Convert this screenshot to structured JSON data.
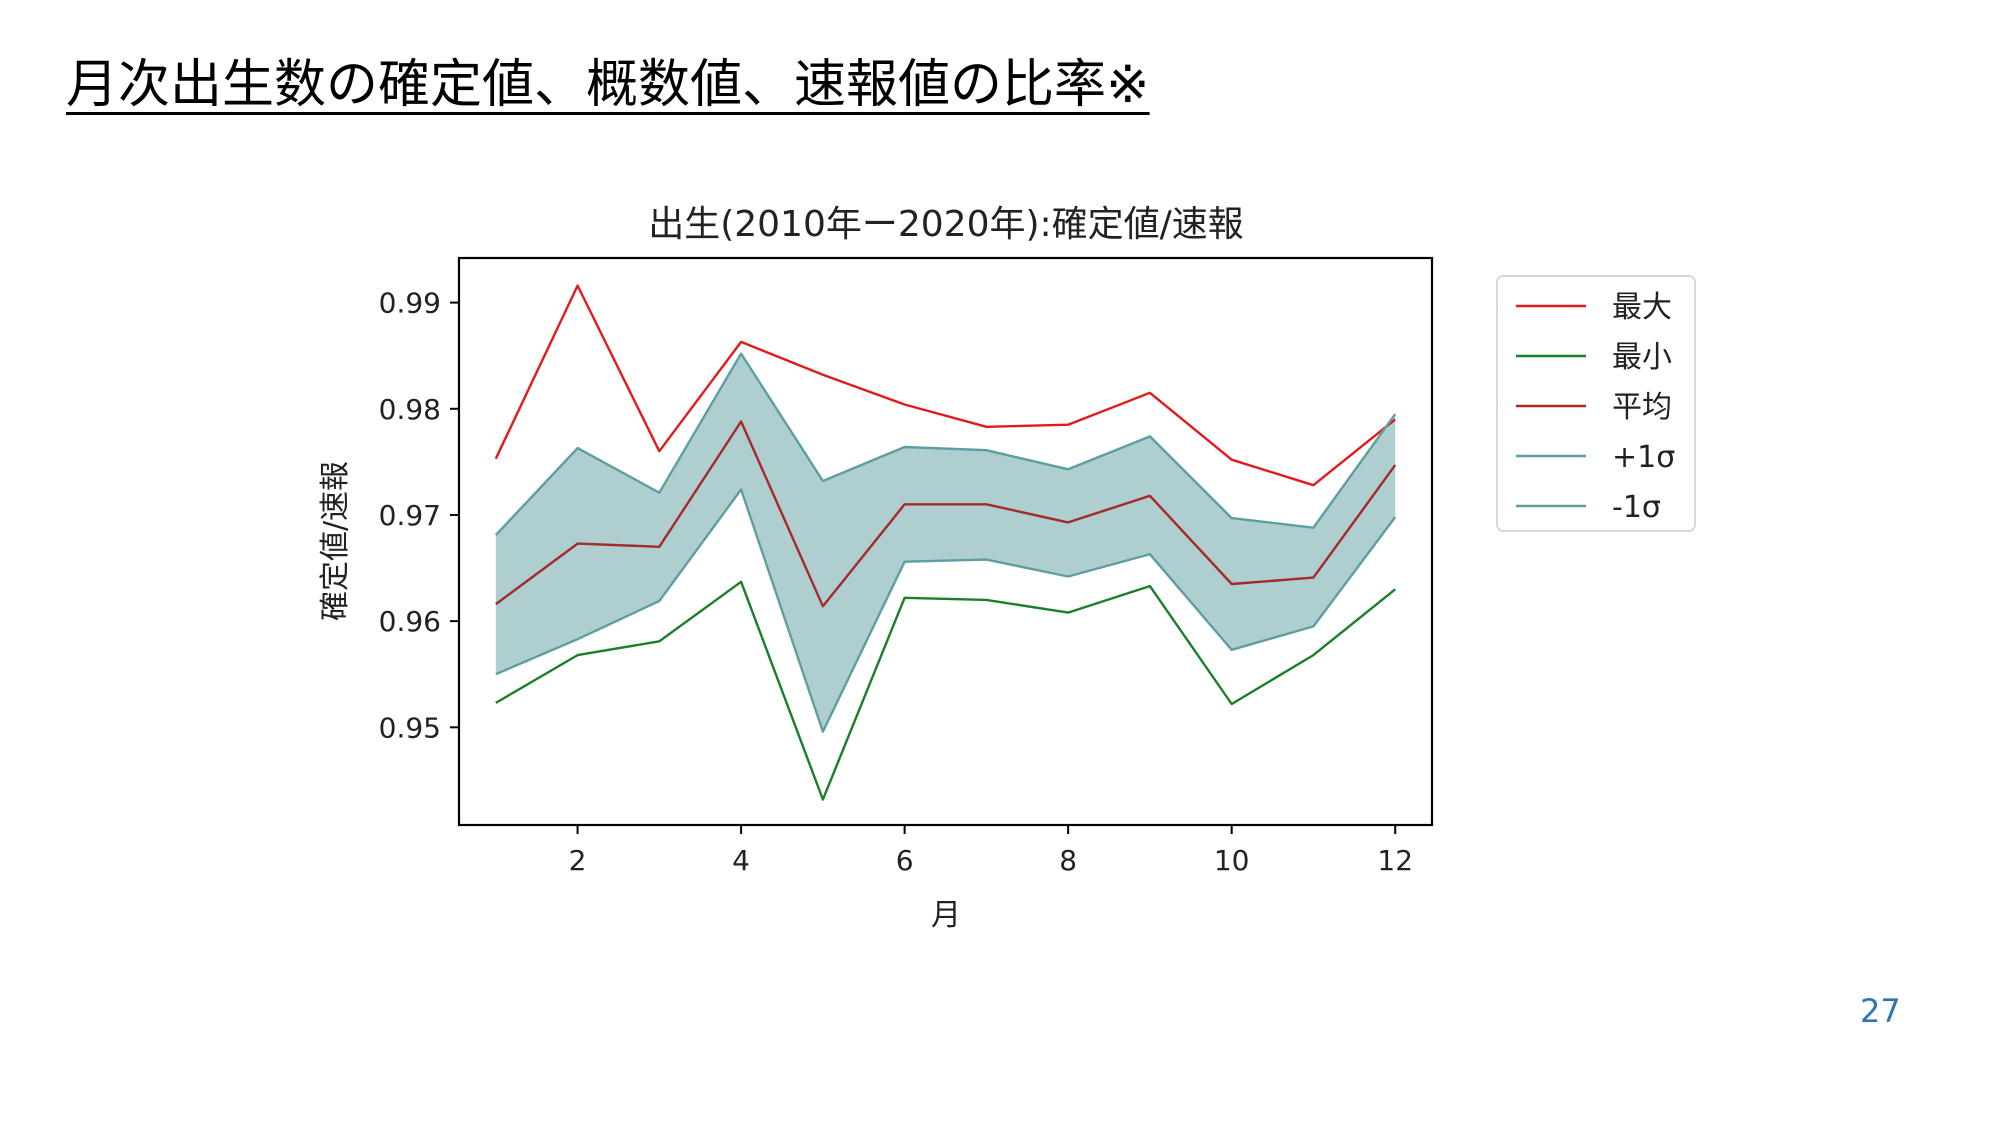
{
  "slide": {
    "title": "月次出生数の確定値、概数値、速報値の比率※",
    "page_number": "27"
  },
  "chart_data": {
    "type": "line",
    "title": "出生(2010年ー2020年):確定値/速報",
    "xlabel": "月",
    "ylabel": "確定値/速報",
    "x": [
      1,
      2,
      3,
      4,
      5,
      6,
      7,
      8,
      9,
      10,
      11,
      12
    ],
    "xlim": [
      0.55,
      12.45
    ],
    "ylim": [
      0.9408,
      0.9942
    ],
    "xticks": [
      2,
      4,
      6,
      8,
      10,
      12
    ],
    "yticks": [
      0.95,
      0.96,
      0.97,
      0.98,
      0.99
    ],
    "ytick_labels": [
      "0.95",
      "0.96",
      "0.97",
      "0.98",
      "0.99"
    ],
    "grid": false,
    "legend_position": "outside-right-top",
    "band": {
      "between": [
        "+1σ",
        "-1σ"
      ],
      "color": "#5F9EA0",
      "opacity": 0.5
    },
    "series": [
      {
        "name": "最大",
        "color": "#E31A1C",
        "values": [
          0.9753,
          0.9916,
          0.976,
          0.9863,
          0.9832,
          0.9804,
          0.9783,
          0.9785,
          0.9815,
          0.9752,
          0.9728,
          0.979
        ]
      },
      {
        "name": "最小",
        "color": "#1A7F2A",
        "values": [
          0.9523,
          0.9568,
          0.9581,
          0.9637,
          0.9432,
          0.9622,
          0.962,
          0.9608,
          0.9633,
          0.9522,
          0.9568,
          0.963
        ]
      },
      {
        "name": "平均",
        "color": "#A52A2A",
        "values": [
          0.9616,
          0.9673,
          0.967,
          0.9788,
          0.9614,
          0.971,
          0.971,
          0.9693,
          0.9718,
          0.9635,
          0.9641,
          0.9747
        ]
      },
      {
        "name": "+1σ",
        "color": "#5F9EA0",
        "values": [
          0.9681,
          0.9763,
          0.9721,
          0.9852,
          0.9732,
          0.9764,
          0.9761,
          0.9743,
          0.9774,
          0.9697,
          0.9688,
          0.9795
        ]
      },
      {
        "name": "-1σ",
        "color": "#5F9EA0",
        "values": [
          0.955,
          0.9583,
          0.9619,
          0.9724,
          0.9496,
          0.9656,
          0.9658,
          0.9642,
          0.9663,
          0.9573,
          0.9595,
          0.9698
        ]
      }
    ]
  }
}
